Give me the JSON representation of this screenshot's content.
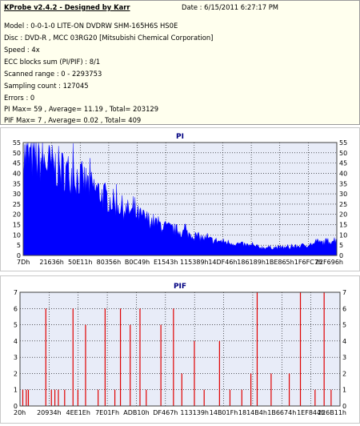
{
  "header": {
    "title": "KProbe v2.4.2 - Designed by Karr",
    "date": "Date : 6/15/2011 6:27:17 PM"
  },
  "info_lines": [
    "Model : 0-0-1-0 LITE-ON DVDRW SHM-165H6S HS0E",
    "Disc : DVD-R , MCC 03RG20   [Mitsubishi Chemical Corporation]",
    "Speed : 4x",
    "ECC blocks sum (PI/PIF) : 8/1",
    "Scanned range : 0 - 2293753",
    "Sampling count : 127045",
    "Errors : 0",
    "PI Max= 59 , Average= 11.19 , Total= 203129",
    "PIF Max= 7 , Average= 0.02 , Total= 409"
  ],
  "colors": {
    "header_bg": "#ffffee",
    "plot_bg": "#e8ecf8",
    "pi_fill": "#0000ff",
    "pif_bar": "#e00000",
    "title_text": "#000080"
  },
  "chart_data": [
    {
      "type": "area",
      "title": "PI",
      "ylim": [
        0,
        55
      ],
      "yticks": [
        0,
        5,
        10,
        15,
        20,
        25,
        30,
        35,
        40,
        45,
        50,
        55
      ],
      "xlim": [
        0,
        2293753
      ],
      "x_tick_labels": [
        "7Dh",
        "21636h",
        "50E11h",
        "80356h",
        "B0C49h",
        "E1543h",
        "115389h",
        "14DF46h",
        "186189h",
        "1BE865h",
        "1F6FC7h",
        "22F696h"
      ],
      "envelope_x": [
        0,
        80000,
        150000,
        250000,
        350000,
        450000,
        550000,
        650000,
        750000,
        850000,
        950000,
        1050000,
        1150000,
        1250000,
        1350000,
        1450000,
        1550000,
        1650000,
        1750000,
        1850000,
        1950000,
        2050000,
        2150000,
        2293753
      ],
      "envelope_y": [
        50,
        49,
        47,
        44,
        41,
        37,
        32,
        27,
        23,
        20,
        17,
        14,
        12,
        10,
        8,
        7,
        6,
        5,
        4,
        4,
        4,
        5,
        6,
        8
      ],
      "max": 59,
      "average": 11.19,
      "grid": true
    },
    {
      "type": "bar",
      "title": "PIF",
      "ylim": [
        0,
        7
      ],
      "yticks": [
        0,
        1,
        2,
        3,
        4,
        5,
        6,
        7
      ],
      "xlim": [
        0,
        2293753
      ],
      "x_tick_labels": [
        "20h",
        "20934h",
        "4EE1Eh",
        "7E01Fh",
        "ADB10h",
        "DF467h",
        "113139h",
        "14B01Fh",
        "1814B4h",
        "1B6674h",
        "1EF844h",
        "226B11h"
      ],
      "x": [
        20000,
        45000,
        60000,
        185000,
        225000,
        250000,
        275000,
        320000,
        380000,
        415000,
        470000,
        560000,
        610000,
        680000,
        720000,
        790000,
        860000,
        905000,
        1010000,
        1100000,
        1160000,
        1250000,
        1320000,
        1430000,
        1505000,
        1590000,
        1655000,
        1700000,
        1800000,
        1930000,
        2010000,
        2115000,
        2180000,
        2230000
      ],
      "values": [
        1,
        1,
        1,
        6,
        1,
        1,
        1,
        1,
        6,
        1,
        5,
        1,
        6,
        1,
        6,
        5,
        6,
        1,
        5,
        6,
        2,
        4,
        1,
        4,
        1,
        1,
        2,
        7,
        2,
        2,
        7,
        1,
        7,
        1
      ],
      "max": 7,
      "average": 0.02,
      "grid": true
    }
  ]
}
